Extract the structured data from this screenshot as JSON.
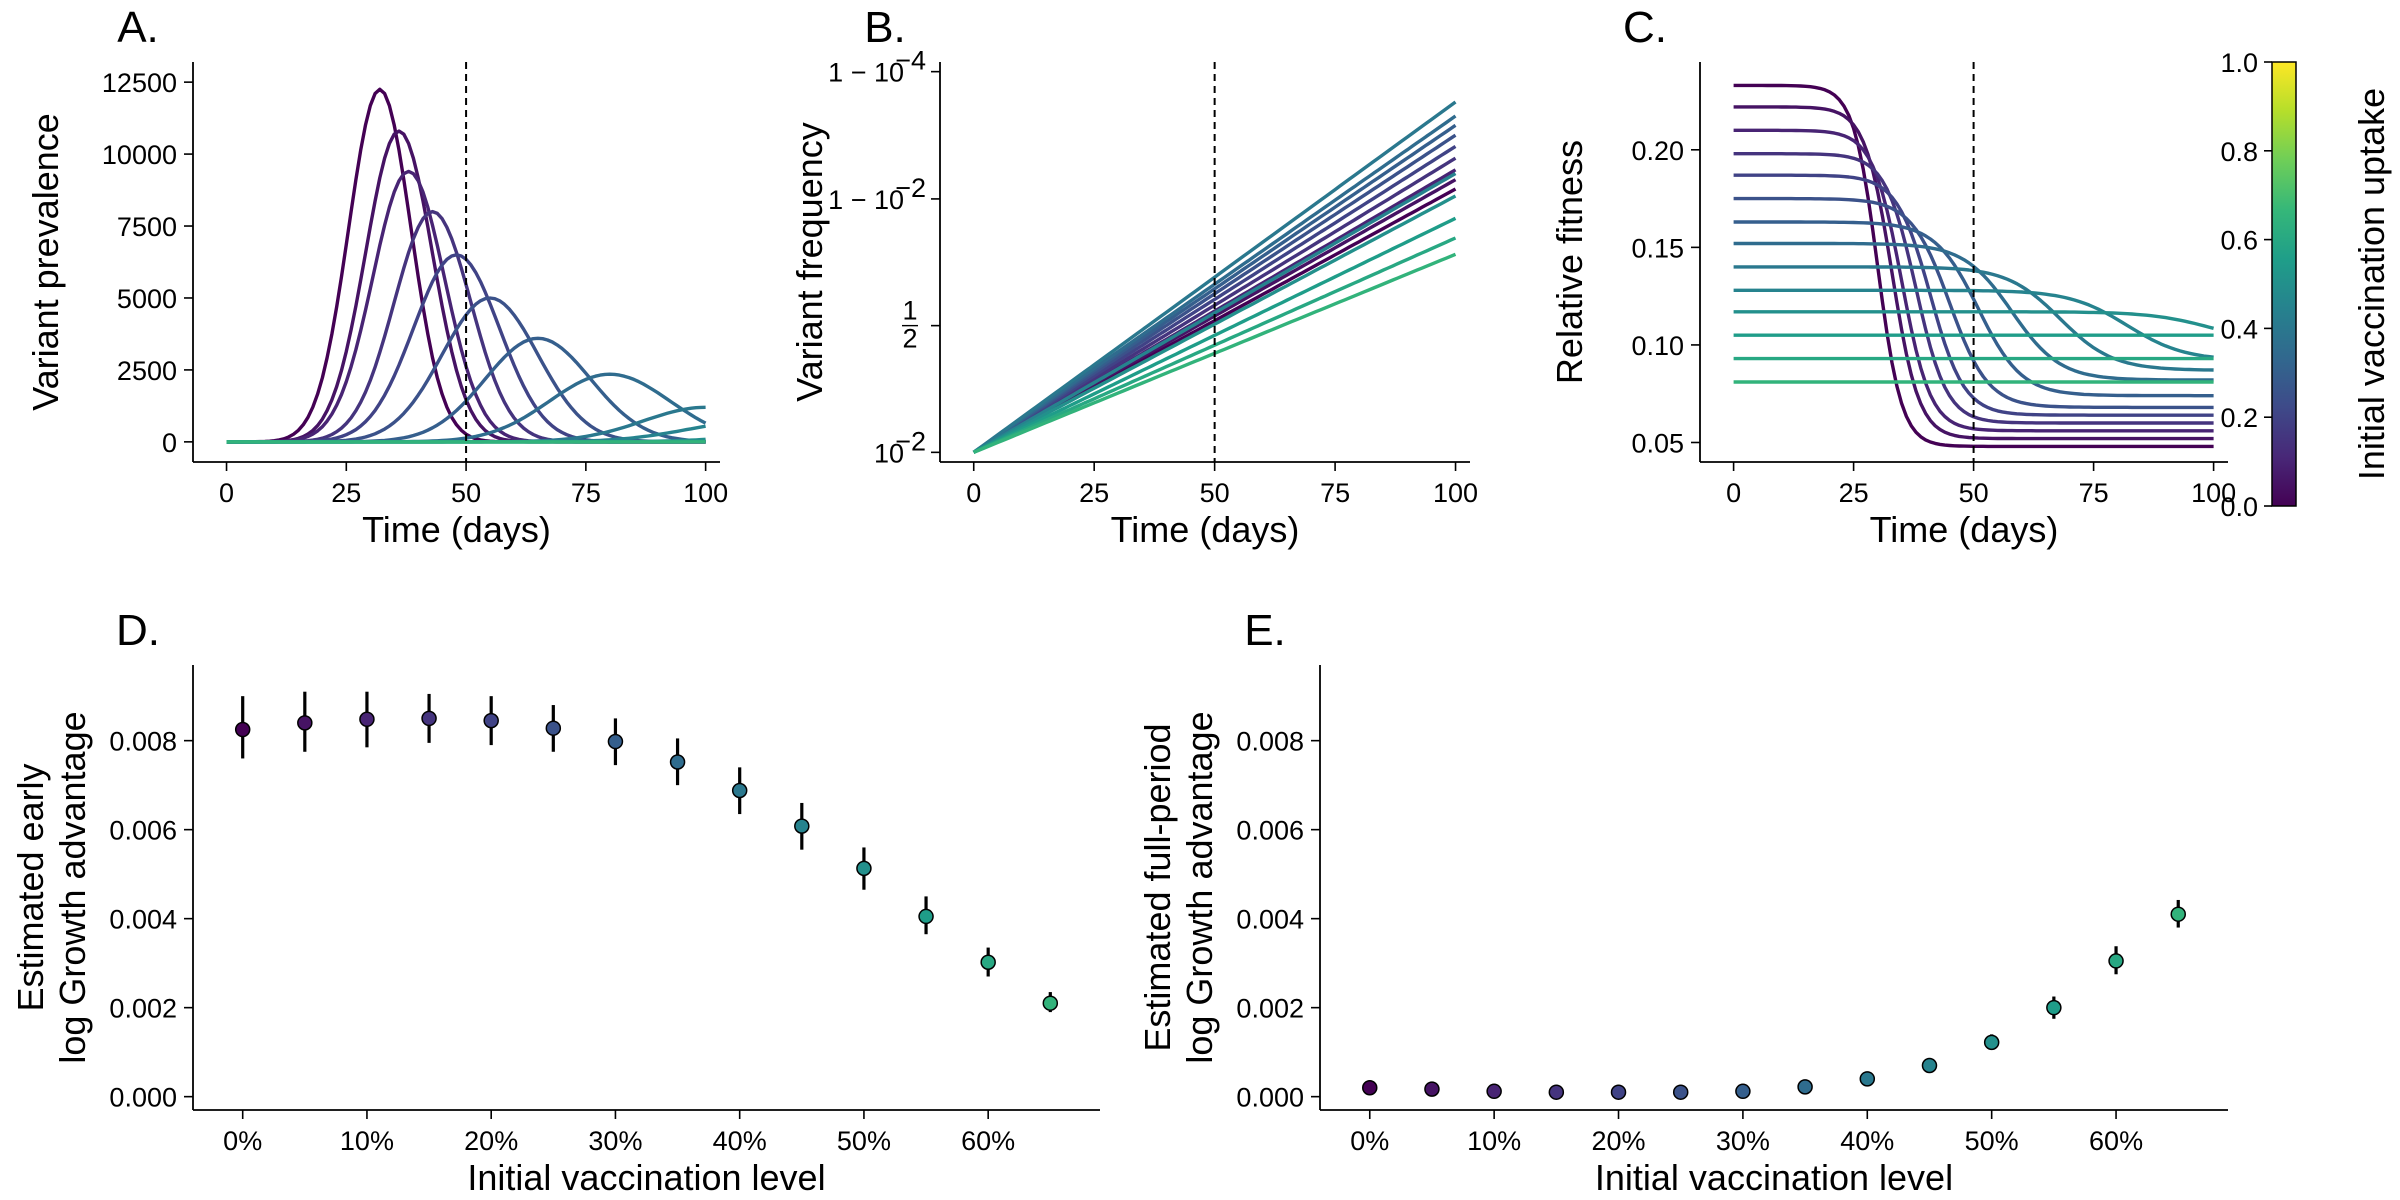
{
  "colormap": {
    "name": "viridis",
    "stops": [
      "#440154",
      "#482878",
      "#3e4a89",
      "#31688e",
      "#26828e",
      "#1f9e89",
      "#35b779",
      "#6ece58",
      "#b5de2b",
      "#fde725"
    ]
  },
  "colorbar": {
    "label": "Initial vaccination uptake",
    "ticks": [
      "0.0",
      "0.2",
      "0.4",
      "0.6",
      "0.8",
      "1.0"
    ],
    "range": [
      0,
      1
    ]
  },
  "chart_data": [
    {
      "id": "A",
      "panel_label": "A.",
      "type": "line",
      "xlabel": "Time (days)",
      "ylabel": "Variant prevalence",
      "xlim": [
        -7,
        103
      ],
      "ylim": [
        -700,
        13200
      ],
      "xticks": [
        0,
        25,
        50,
        75,
        100
      ],
      "xtick_labels": [
        "0",
        "25",
        "50",
        "75",
        "100"
      ],
      "yticks": [
        0,
        2500,
        5000,
        7500,
        10000,
        12500
      ],
      "ytick_labels": [
        "0",
        "2500",
        "5000",
        "7500",
        "10000",
        "12500"
      ],
      "vline_x": 50,
      "series_shape": "gaussian",
      "series": [
        {
          "uptake": 0.0,
          "peak_day": 32,
          "peak": 12250,
          "width": 6.5
        },
        {
          "uptake": 0.05,
          "peak_day": 36,
          "peak": 10800,
          "width": 7
        },
        {
          "uptake": 0.1,
          "peak_day": 38,
          "peak": 9400,
          "width": 7.5
        },
        {
          "uptake": 0.15,
          "peak_day": 43,
          "peak": 8000,
          "width": 8
        },
        {
          "uptake": 0.2,
          "peak_day": 48,
          "peak": 6500,
          "width": 9
        },
        {
          "uptake": 0.25,
          "peak_day": 55,
          "peak": 5000,
          "width": 10
        },
        {
          "uptake": 0.3,
          "peak_day": 65,
          "peak": 3600,
          "width": 11
        },
        {
          "uptake": 0.35,
          "peak_day": 80,
          "peak": 2350,
          "width": 12.5
        },
        {
          "uptake": 0.4,
          "peak_day": 100,
          "peak": 1200,
          "width": 13
        },
        {
          "uptake": 0.45,
          "peak_day": 110,
          "peak": 700,
          "width": 14
        },
        {
          "uptake": 0.5,
          "peak_day": 125,
          "peak": 350,
          "width": 15
        },
        {
          "uptake": 0.55,
          "peak_day": 140,
          "peak": 150,
          "width": 16
        },
        {
          "uptake": 0.6,
          "peak_day": 150,
          "peak": 60,
          "width": 16
        },
        {
          "uptake": 0.65,
          "peak_day": 160,
          "peak": 25,
          "width": 16
        }
      ]
    },
    {
      "id": "B",
      "panel_label": "B.",
      "type": "line",
      "xlabel": "Time (days)",
      "ylabel": "Variant frequency",
      "yscale": "logit",
      "xlim": [
        -7,
        103
      ],
      "xticks": [
        0,
        25,
        50,
        75,
        100
      ],
      "xtick_labels": [
        "0",
        "25",
        "50",
        "75",
        "100"
      ],
      "ytick_labels": [
        "10",
        "1",
        "2",
        "1 − 10",
        "1 − 10"
      ],
      "ytick_label_sup": [
        "−2",
        "",
        "",
        "−2",
        "−4"
      ],
      "vline_x": 50,
      "series_shape": "logit-linear",
      "series": [
        {
          "uptake": 0.0,
          "start": 0.01,
          "end": 0.993
        },
        {
          "uptake": 0.05,
          "start": 0.01,
          "end": 0.995
        },
        {
          "uptake": 0.1,
          "start": 0.01,
          "end": 0.9965
        },
        {
          "uptake": 0.15,
          "start": 0.01,
          "end": 0.9977
        },
        {
          "uptake": 0.2,
          "start": 0.01,
          "end": 0.9985
        },
        {
          "uptake": 0.25,
          "start": 0.01,
          "end": 0.999
        },
        {
          "uptake": 0.3,
          "start": 0.01,
          "end": 0.9993
        },
        {
          "uptake": 0.35,
          "start": 0.01,
          "end": 0.9995
        },
        {
          "uptake": 0.4,
          "start": 0.01,
          "end": 0.9997
        },
        {
          "uptake": 0.45,
          "start": 0.01,
          "end": 0.996
        },
        {
          "uptake": 0.5,
          "start": 0.01,
          "end": 0.991
        },
        {
          "uptake": 0.55,
          "start": 0.01,
          "end": 0.98
        },
        {
          "uptake": 0.6,
          "start": 0.01,
          "end": 0.96
        },
        {
          "uptake": 0.65,
          "start": 0.01,
          "end": 0.93
        }
      ]
    },
    {
      "id": "C",
      "panel_label": "C.",
      "type": "line",
      "xlabel": "Time (days)",
      "ylabel": "Relative fitness",
      "xlim": [
        -7,
        103
      ],
      "ylim": [
        0.04,
        0.245
      ],
      "xticks": [
        0,
        25,
        50,
        75,
        100
      ],
      "xtick_labels": [
        "0",
        "25",
        "50",
        "75",
        "100"
      ],
      "yticks": [
        0.05,
        0.1,
        0.15,
        0.2
      ],
      "ytick_labels": [
        "0.05",
        "0.10",
        "0.15",
        "0.20"
      ],
      "vline_x": 50,
      "series_shape": "sigmoid-drop",
      "series": [
        {
          "uptake": 0.0,
          "start": 0.233,
          "end": 0.048,
          "mid_day": 30,
          "width": 2.5
        },
        {
          "uptake": 0.05,
          "start": 0.222,
          "end": 0.052,
          "mid_day": 33,
          "width": 2.8
        },
        {
          "uptake": 0.1,
          "start": 0.21,
          "end": 0.056,
          "mid_day": 35,
          "width": 3.0
        },
        {
          "uptake": 0.15,
          "start": 0.198,
          "end": 0.06,
          "mid_day": 38,
          "width": 3.2
        },
        {
          "uptake": 0.2,
          "start": 0.187,
          "end": 0.064,
          "mid_day": 41,
          "width": 3.5
        },
        {
          "uptake": 0.25,
          "start": 0.175,
          "end": 0.068,
          "mid_day": 45,
          "width": 4.0
        },
        {
          "uptake": 0.3,
          "start": 0.163,
          "end": 0.074,
          "mid_day": 51,
          "width": 4.5
        },
        {
          "uptake": 0.35,
          "start": 0.152,
          "end": 0.082,
          "mid_day": 58,
          "width": 5.0
        },
        {
          "uptake": 0.4,
          "start": 0.14,
          "end": 0.087,
          "mid_day": 68,
          "width": 5.5
        },
        {
          "uptake": 0.45,
          "start": 0.128,
          "end": 0.092,
          "mid_day": 82,
          "width": 6.0
        },
        {
          "uptake": 0.5,
          "start": 0.117,
          "end": 0.1,
          "mid_day": 100,
          "width": 6.5
        },
        {
          "uptake": 0.55,
          "start": 0.105,
          "end": 0.105,
          "mid_day": 200,
          "width": 6.5
        },
        {
          "uptake": 0.6,
          "start": 0.093,
          "end": 0.093,
          "mid_day": 200,
          "width": 6.5
        },
        {
          "uptake": 0.65,
          "start": 0.081,
          "end": 0.081,
          "mid_day": 200,
          "width": 6.5
        }
      ]
    },
    {
      "id": "D",
      "panel_label": "D.",
      "type": "scatter",
      "xlabel": "Initial vaccination level",
      "ylabel": [
        "Estimated early",
        "log Growth advantage"
      ],
      "xlim": [
        -0.04,
        0.69
      ],
      "ylim": [
        -0.0003,
        0.0097
      ],
      "xticks": [
        0,
        0.1,
        0.2,
        0.3,
        0.4,
        0.5,
        0.6
      ],
      "xtick_labels": [
        "0%",
        "10%",
        "20%",
        "30%",
        "40%",
        "50%",
        "60%"
      ],
      "yticks": [
        0,
        0.002,
        0.004,
        0.006,
        0.008
      ],
      "ytick_labels": [
        "0.000",
        "0.002",
        "0.004",
        "0.006",
        "0.008"
      ],
      "points": [
        {
          "x": 0.0,
          "y": 0.00825,
          "lo": 0.0076,
          "hi": 0.009
        },
        {
          "x": 0.05,
          "y": 0.0084,
          "lo": 0.00775,
          "hi": 0.0091
        },
        {
          "x": 0.1,
          "y": 0.00848,
          "lo": 0.00785,
          "hi": 0.0091
        },
        {
          "x": 0.15,
          "y": 0.0085,
          "lo": 0.00795,
          "hi": 0.00905
        },
        {
          "x": 0.2,
          "y": 0.00845,
          "lo": 0.0079,
          "hi": 0.009
        },
        {
          "x": 0.25,
          "y": 0.00828,
          "lo": 0.00775,
          "hi": 0.0088
        },
        {
          "x": 0.3,
          "y": 0.00798,
          "lo": 0.00745,
          "hi": 0.0085
        },
        {
          "x": 0.35,
          "y": 0.00752,
          "lo": 0.007,
          "hi": 0.00805
        },
        {
          "x": 0.4,
          "y": 0.00688,
          "lo": 0.00635,
          "hi": 0.0074
        },
        {
          "x": 0.45,
          "y": 0.00608,
          "lo": 0.00555,
          "hi": 0.0066
        },
        {
          "x": 0.5,
          "y": 0.00513,
          "lo": 0.00465,
          "hi": 0.0056
        },
        {
          "x": 0.55,
          "y": 0.00405,
          "lo": 0.00365,
          "hi": 0.0045
        },
        {
          "x": 0.6,
          "y": 0.00302,
          "lo": 0.0027,
          "hi": 0.00335
        },
        {
          "x": 0.65,
          "y": 0.0021,
          "lo": 0.0019,
          "hi": 0.00235
        }
      ]
    },
    {
      "id": "E",
      "panel_label": "E.",
      "type": "scatter",
      "xlabel": "Initial vaccination level",
      "ylabel": [
        "Estimated full-period",
        "log Growth advantage"
      ],
      "xlim": [
        -0.04,
        0.69
      ],
      "ylim": [
        -0.0003,
        0.0097
      ],
      "xticks": [
        0,
        0.1,
        0.2,
        0.3,
        0.4,
        0.5,
        0.6
      ],
      "xtick_labels": [
        "0%",
        "10%",
        "20%",
        "30%",
        "40%",
        "50%",
        "60%"
      ],
      "yticks": [
        0,
        0.002,
        0.004,
        0.006,
        0.008
      ],
      "ytick_labels": [
        "0.000",
        "0.002",
        "0.004",
        "0.006",
        "0.008"
      ],
      "points": [
        {
          "x": 0.0,
          "y": 0.0002,
          "lo": 0.00015,
          "hi": 0.00025
        },
        {
          "x": 0.05,
          "y": 0.00017,
          "lo": 0.00012,
          "hi": 0.00022
        },
        {
          "x": 0.1,
          "y": 0.00012,
          "lo": 8e-05,
          "hi": 0.00016
        },
        {
          "x": 0.15,
          "y": 0.0001,
          "lo": 6e-05,
          "hi": 0.00014
        },
        {
          "x": 0.2,
          "y": 0.0001,
          "lo": 6e-05,
          "hi": 0.00014
        },
        {
          "x": 0.25,
          "y": 0.0001,
          "lo": 6e-05,
          "hi": 0.00014
        },
        {
          "x": 0.3,
          "y": 0.00012,
          "lo": 8e-05,
          "hi": 0.00016
        },
        {
          "x": 0.35,
          "y": 0.00022,
          "lo": 0.00017,
          "hi": 0.00027
        },
        {
          "x": 0.4,
          "y": 0.0004,
          "lo": 0.00034,
          "hi": 0.00046
        },
        {
          "x": 0.45,
          "y": 0.0007,
          "lo": 0.00062,
          "hi": 0.00078
        },
        {
          "x": 0.5,
          "y": 0.00122,
          "lo": 0.00105,
          "hi": 0.0014
        },
        {
          "x": 0.55,
          "y": 0.002,
          "lo": 0.00175,
          "hi": 0.00225
        },
        {
          "x": 0.6,
          "y": 0.00305,
          "lo": 0.00275,
          "hi": 0.00338
        },
        {
          "x": 0.65,
          "y": 0.0041,
          "lo": 0.0038,
          "hi": 0.00442
        }
      ]
    }
  ]
}
